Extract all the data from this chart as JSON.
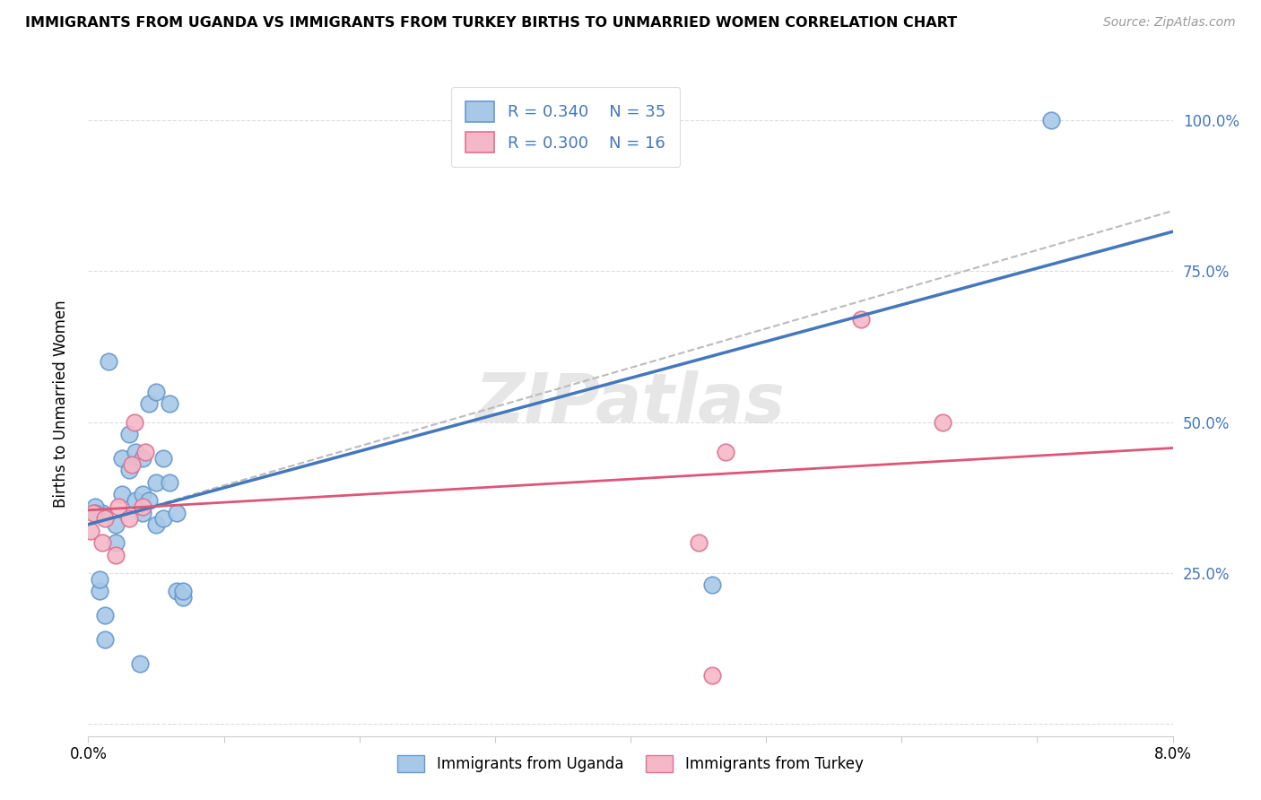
{
  "title": "IMMIGRANTS FROM UGANDA VS IMMIGRANTS FROM TURKEY BIRTHS TO UNMARRIED WOMEN CORRELATION CHART",
  "source": "Source: ZipAtlas.com",
  "ylabel": "Births to Unmarried Women",
  "xlim": [
    0.0,
    8.0
  ],
  "ylim": [
    -0.02,
    1.08
  ],
  "y_ticks": [
    0.0,
    0.25,
    0.5,
    0.75,
    1.0
  ],
  "y_tick_labels": [
    "",
    "25.0%",
    "50.0%",
    "75.0%",
    "100.0%"
  ],
  "uganda_color": "#A8C8E8",
  "turkey_color": "#F4B8C8",
  "uganda_edge": "#6699CC",
  "turkey_edge": "#E07090",
  "regression_blue": "#4477BB",
  "regression_pink": "#DD5577",
  "regression_dashed_color": "#BBBBBB",
  "watermark": "ZIPatlas",
  "uganda_x": [
    0.1,
    0.15,
    0.2,
    0.2,
    0.25,
    0.25,
    0.3,
    0.3,
    0.35,
    0.35,
    0.4,
    0.4,
    0.4,
    0.45,
    0.45,
    0.5,
    0.5,
    0.5,
    0.55,
    0.55,
    0.6,
    0.6,
    0.65,
    0.65,
    0.7,
    0.7,
    0.05,
    0.05,
    0.08,
    0.08,
    0.12,
    0.12,
    4.6,
    7.1,
    0.38
  ],
  "uganda_y": [
    0.35,
    0.6,
    0.3,
    0.33,
    0.38,
    0.44,
    0.42,
    0.48,
    0.37,
    0.45,
    0.35,
    0.38,
    0.44,
    0.37,
    0.53,
    0.33,
    0.4,
    0.55,
    0.34,
    0.44,
    0.4,
    0.53,
    0.22,
    0.35,
    0.21,
    0.22,
    0.36,
    0.35,
    0.22,
    0.24,
    0.18,
    0.14,
    0.23,
    1.0,
    0.1
  ],
  "turkey_x": [
    0.02,
    0.04,
    0.1,
    0.12,
    0.2,
    0.22,
    0.3,
    0.32,
    0.34,
    0.4,
    0.42,
    4.5,
    4.7,
    5.7,
    6.3,
    4.6
  ],
  "turkey_y": [
    0.32,
    0.35,
    0.3,
    0.34,
    0.28,
    0.36,
    0.34,
    0.43,
    0.5,
    0.36,
    0.45,
    0.3,
    0.45,
    0.67,
    0.5,
    0.08
  ],
  "background_color": "#FFFFFF",
  "grid_color": "#DDDDDD",
  "x_ticks": [
    0.0,
    1.0,
    2.0,
    3.0,
    4.0,
    5.0,
    6.0,
    7.0,
    8.0
  ],
  "x_tick_labels": [
    "0.0%",
    "",
    "",
    "",
    "",
    "",
    "",
    "",
    "8.0%"
  ]
}
